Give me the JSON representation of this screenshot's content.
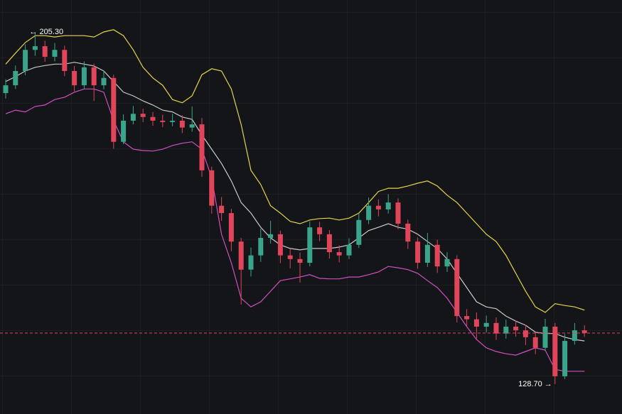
{
  "chart_data": {
    "type": "candlestick",
    "ylim": [
      122.2,
      212.25
    ],
    "up_color": "#3aa58b",
    "down_color": "#e0455a",
    "open": [
      192.0,
      193.7,
      196.8,
      201.4,
      202.2,
      199.9,
      201.4,
      196.8,
      193.7,
      197.6,
      193.7,
      195.3,
      181.4,
      186.0,
      187.5,
      186.8,
      186.0,
      185.7,
      186.0,
      184.5,
      185.2,
      175.2,
      167.5,
      165.9,
      159.7,
      153.6,
      156.7,
      160.5,
      161.3,
      156.7,
      155.9,
      155.1,
      162.8,
      161.3,
      157.4,
      156.7,
      159.0,
      164.4,
      167.5,
      166.7,
      168.2,
      163.6,
      159.7,
      155.1,
      159.0,
      154.3,
      155.9,
      143.5,
      142.8,
      141.2,
      142.0,
      139.7,
      141.2,
      140.4,
      138.9,
      136.6,
      141.2,
      130.4,
      138.1,
      140.4
    ],
    "high": [
      195.0,
      198.0,
      202.6,
      205.3,
      203.4,
      202.9,
      202.3,
      197.9,
      198.9,
      198.4,
      196.9,
      196.0,
      187.4,
      189.2,
      188.6,
      187.9,
      187.3,
      187.5,
      187.2,
      189.1,
      186.6,
      176.0,
      169.4,
      166.8,
      160.5,
      158.4,
      162.5,
      164.2,
      162.1,
      158.2,
      157.3,
      164.1,
      164.0,
      162.2,
      158.9,
      160.4,
      165.9,
      169.3,
      168.9,
      170.0,
      169.1,
      164.5,
      160.6,
      161.6,
      160.1,
      157.4,
      156.7,
      145.0,
      144.3,
      143.6,
      143.2,
      142.7,
      142.5,
      141.6,
      140.0,
      142.9,
      142.0,
      139.6,
      142.0,
      141.5
    ],
    "low": [
      190.8,
      192.9,
      195.9,
      200.1,
      198.8,
      198.9,
      195.7,
      192.4,
      192.9,
      190.3,
      192.8,
      179.9,
      180.9,
      185.2,
      185.7,
      184.9,
      184.6,
      184.8,
      183.3,
      183.6,
      173.8,
      165.8,
      164.2,
      157.6,
      146.0,
      152.1,
      155.3,
      159.3,
      155.0,
      153.9,
      150.8,
      154.3,
      159.8,
      156.0,
      155.2,
      155.9,
      158.3,
      163.5,
      165.2,
      165.8,
      162.4,
      158.1,
      153.8,
      154.2,
      152.9,
      153.1,
      142.1,
      141.3,
      138.4,
      139.9,
      138.3,
      138.6,
      139.0,
      137.2,
      135.2,
      135.9,
      128.7,
      129.8,
      137.3,
      139.0
    ],
    "close": [
      193.7,
      196.8,
      201.4,
      202.2,
      199.9,
      201.4,
      196.8,
      193.7,
      197.6,
      193.7,
      195.3,
      181.4,
      186.0,
      187.5,
      186.8,
      186.0,
      185.7,
      186.0,
      184.5,
      185.2,
      175.2,
      167.5,
      165.9,
      159.7,
      153.6,
      156.7,
      160.5,
      161.3,
      156.7,
      155.9,
      155.1,
      162.8,
      161.3,
      157.4,
      156.7,
      159.0,
      164.4,
      167.5,
      166.7,
      168.2,
      163.6,
      159.7,
      155.1,
      159.0,
      154.3,
      155.9,
      143.5,
      142.8,
      141.2,
      142.0,
      139.7,
      141.2,
      140.4,
      138.9,
      136.6,
      141.2,
      130.4,
      138.1,
      140.4,
      139.8
    ],
    "upper_band": {
      "color": "#e3d54a",
      "values": [
        198.3,
        200.7,
        203.0,
        204.5,
        204.5,
        204.2,
        204.5,
        204.5,
        204.5,
        204.2,
        205.3,
        205.8,
        204.5,
        201.4,
        197.6,
        195.3,
        193.7,
        190.6,
        189.9,
        191.4,
        196.0,
        197.3,
        196.8,
        192.9,
        185.2,
        175.2,
        172.1,
        167.5,
        165.9,
        164.1,
        163.6,
        164.4,
        164.7,
        164.8,
        164.4,
        164.8,
        165.9,
        168.2,
        170.6,
        171.3,
        171.3,
        171.8,
        172.4,
        172.9,
        171.8,
        169.8,
        168.2,
        165.9,
        163.6,
        161.3,
        159.7,
        156.7,
        152.8,
        148.9,
        145.5,
        144.3,
        146.2,
        145.8,
        145.5,
        144.8
      ]
    },
    "middle_band": {
      "color": "#c9c9c9",
      "values": [
        194.5,
        195.6,
        196.8,
        197.6,
        198.0,
        198.3,
        198.3,
        198.7,
        198.3,
        197.9,
        196.8,
        194.5,
        192.2,
        191.4,
        190.3,
        189.4,
        188.3,
        187.9,
        186.8,
        186.3,
        182.9,
        179.8,
        176.7,
        172.9,
        168.2,
        165.9,
        162.8,
        160.5,
        159.0,
        158.2,
        157.9,
        158.2,
        158.2,
        158.2,
        158.5,
        159.0,
        160.5,
        162.1,
        162.8,
        163.6,
        162.8,
        162.4,
        161.3,
        159.7,
        158.2,
        155.9,
        152.8,
        149.7,
        146.6,
        145.5,
        145.1,
        143.5,
        142.4,
        141.5,
        140.0,
        139.7,
        139.7,
        138.9,
        138.4,
        138.1
      ]
    },
    "lower_band": {
      "color": "#d04fc2",
      "values": [
        187.5,
        188.3,
        187.9,
        189.1,
        189.4,
        190.6,
        191.1,
        192.2,
        192.9,
        192.9,
        192.2,
        186.0,
        181.4,
        179.8,
        179.5,
        179.4,
        179.8,
        180.6,
        181.1,
        181.4,
        179.8,
        173.6,
        161.3,
        155.1,
        147.4,
        145.5,
        146.6,
        148.9,
        151.2,
        151.6,
        152.0,
        152.5,
        151.7,
        151.6,
        151.6,
        152.0,
        152.0,
        152.5,
        153.1,
        154.3,
        154.0,
        153.6,
        152.8,
        151.2,
        149.7,
        147.4,
        144.3,
        141.2,
        138.4,
        136.6,
        135.8,
        135.3,
        135.0,
        135.8,
        136.6,
        136.1,
        131.9,
        131.5,
        131.5,
        131.5
      ]
    },
    "last_price": 139.8,
    "last_price_color": "#e0455a",
    "annotations": [
      {
        "index": 3,
        "value": 205.3,
        "label": "← 205.30",
        "side": "right"
      },
      {
        "index": 56,
        "value": 128.7,
        "label": "128.70 →",
        "side": "left"
      }
    ]
  }
}
